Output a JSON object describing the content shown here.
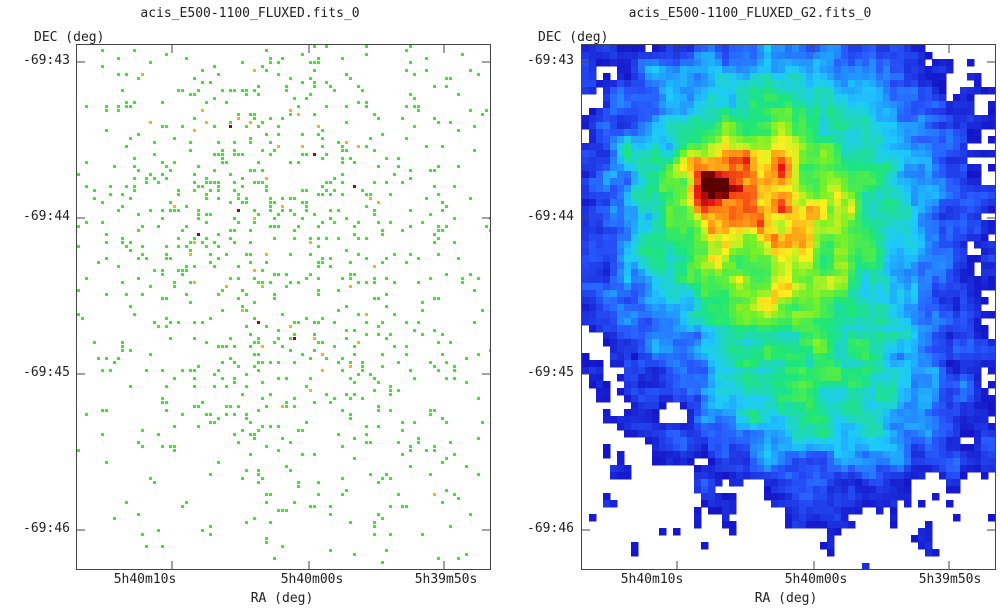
{
  "chart_data": [
    {
      "type": "heatmap",
      "title": "acis_E500-1100_FLUXED.fits_0",
      "xlabel": "RA (deg)",
      "ylabel": "DEC (deg)",
      "xticks": [
        "5h40m10s",
        "5h40m00s",
        "5h39m50s"
      ],
      "yticks": [
        "-69:43",
        "-69:44",
        "-69:45",
        "-69:46"
      ],
      "rendering": "sparse photon-event pixels",
      "colors": {
        "low": "#33ee22",
        "mid": "#ffb000",
        "high": "#aa0000"
      }
    },
    {
      "type": "heatmap",
      "title": "acis_E500-1100_FLUXED_G2.fits_0",
      "xlabel": "RA (deg)",
      "ylabel": "DEC (deg)",
      "xticks": [
        "5h40m10s",
        "5h40m00s",
        "5h39m50s"
      ],
      "yticks": [
        "-69:43",
        "-69:44",
        "-69:45",
        "-69:46"
      ],
      "rendering": "gaussian-smoothed intensity map",
      "colors": {
        "low": "#1010cc",
        "mid": "#22ee22",
        "high": "#aa0000"
      }
    }
  ]
}
